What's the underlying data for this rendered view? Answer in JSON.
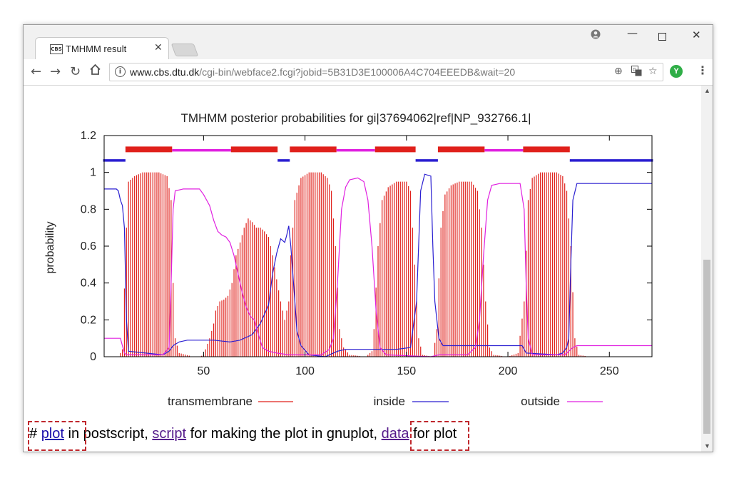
{
  "browser": {
    "tab_title": "TMHMM result",
    "favicon_text": "CBS",
    "url_host": "www.cbs.dtu.dk",
    "url_path": "/cgi-bin/webface2.fcgi?jobid=5B31D3E100006A4C704EEEDB&wait=20",
    "icons": [
      "profile-icon",
      "minimize-icon",
      "maximize-icon",
      "close-icon",
      "back-icon",
      "forward-icon",
      "reload-icon",
      "home-icon",
      "info-icon",
      "zoom-icon",
      "translate-icon",
      "star-icon",
      "extension-icon",
      "menu-icon"
    ],
    "extension_letter": "Y"
  },
  "chart_data": {
    "type": "line",
    "title": "TMHMM posterior probabilities for gi|37694062|ref|NP_932766.1|",
    "xlabel": "",
    "ylabel": "probability",
    "xlim": [
      1,
      271
    ],
    "ylim": [
      0,
      1.2
    ],
    "xticks": [
      "50",
      "100",
      "150",
      "200",
      "250"
    ],
    "yticks": [
      "0",
      "0.2",
      "0.4",
      "0.6",
      "0.8",
      "1",
      "1.2"
    ],
    "legend_position": "bottom",
    "colors": {
      "transmembrane": "#e0201b",
      "inside": "#2a1fd1",
      "outside": "#e020e0"
    },
    "topology": [
      {
        "type": "inside",
        "start": 1,
        "end": 11
      },
      {
        "type": "transmembrane",
        "start": 12,
        "end": 34
      },
      {
        "type": "outside",
        "start": 35,
        "end": 63
      },
      {
        "type": "transmembrane",
        "start": 64,
        "end": 86
      },
      {
        "type": "inside",
        "start": 87,
        "end": 92
      },
      {
        "type": "transmembrane",
        "start": 93,
        "end": 115
      },
      {
        "type": "outside",
        "start": 116,
        "end": 134
      },
      {
        "type": "transmembrane",
        "start": 135,
        "end": 154
      },
      {
        "type": "inside",
        "start": 155,
        "end": 165
      },
      {
        "type": "transmembrane",
        "start": 166,
        "end": 188
      },
      {
        "type": "outside",
        "start": 189,
        "end": 207
      },
      {
        "type": "transmembrane",
        "start": 208,
        "end": 230
      },
      {
        "type": "inside",
        "start": 231,
        "end": 271
      }
    ],
    "series": [
      {
        "name": "transmembrane",
        "style": "impulses",
        "points": [
          [
            1,
            0
          ],
          [
            8,
            0
          ],
          [
            10,
            0.04
          ],
          [
            12,
            0.7
          ],
          [
            13,
            0.95
          ],
          [
            16,
            0.98
          ],
          [
            20,
            1.0
          ],
          [
            28,
            1.0
          ],
          [
            32,
            0.98
          ],
          [
            34,
            0.85
          ],
          [
            35,
            0.4
          ],
          [
            36,
            0.1
          ],
          [
            38,
            0.02
          ],
          [
            45,
            0
          ],
          [
            48,
            0
          ],
          [
            50,
            0.01
          ],
          [
            53,
            0.1
          ],
          [
            55,
            0.18
          ],
          [
            56,
            0.25
          ],
          [
            58,
            0.3
          ],
          [
            60,
            0.31
          ],
          [
            62,
            0.33
          ],
          [
            64,
            0.4
          ],
          [
            66,
            0.55
          ],
          [
            68,
            0.62
          ],
          [
            70,
            0.7
          ],
          [
            72,
            0.75
          ],
          [
            74,
            0.73
          ],
          [
            76,
            0.7
          ],
          [
            78,
            0.7
          ],
          [
            80,
            0.68
          ],
          [
            82,
            0.65
          ],
          [
            84,
            0.55
          ],
          [
            86,
            0.42
          ],
          [
            88,
            0.3
          ],
          [
            90,
            0.2
          ],
          [
            92,
            0.3
          ],
          [
            93,
            0.55
          ],
          [
            95,
            0.85
          ],
          [
            98,
            0.97
          ],
          [
            102,
            1.0
          ],
          [
            108,
            1.0
          ],
          [
            111,
            0.97
          ],
          [
            113,
            0.9
          ],
          [
            115,
            0.6
          ],
          [
            117,
            0.15
          ],
          [
            119,
            0.05
          ],
          [
            122,
            0.01
          ],
          [
            130,
            0
          ],
          [
            133,
            0.03
          ],
          [
            134,
            0.15
          ],
          [
            136,
            0.6
          ],
          [
            138,
            0.85
          ],
          [
            141,
            0.92
          ],
          [
            145,
            0.95
          ],
          [
            150,
            0.95
          ],
          [
            152,
            0.9
          ],
          [
            154,
            0.5
          ],
          [
            156,
            0.1
          ],
          [
            158,
            0.01
          ],
          [
            163,
            0
          ],
          [
            165,
            0.15
          ],
          [
            167,
            0.7
          ],
          [
            169,
            0.88
          ],
          [
            172,
            0.93
          ],
          [
            176,
            0.95
          ],
          [
            182,
            0.95
          ],
          [
            185,
            0.9
          ],
          [
            187,
            0.7
          ],
          [
            189,
            0.3
          ],
          [
            191,
            0.05
          ],
          [
            193,
            0.01
          ],
          [
            200,
            0
          ],
          [
            205,
            0.02
          ],
          [
            208,
            0.3
          ],
          [
            210,
            0.85
          ],
          [
            212,
            0.97
          ],
          [
            216,
            1.0
          ],
          [
            224,
            1.0
          ],
          [
            227,
            0.98
          ],
          [
            229,
            0.9
          ],
          [
            231,
            0.6
          ],
          [
            233,
            0.1
          ],
          [
            235,
            0.01
          ],
          [
            240,
            0
          ],
          [
            271,
            0
          ]
        ]
      },
      {
        "name": "inside",
        "style": "line",
        "points": [
          [
            1,
            0.91
          ],
          [
            7,
            0.91
          ],
          [
            8,
            0.9
          ],
          [
            9,
            0.85
          ],
          [
            10,
            0.82
          ],
          [
            11,
            0.7
          ],
          [
            12,
            0.2
          ],
          [
            13,
            0.03
          ],
          [
            30,
            0.01
          ],
          [
            33,
            0.03
          ],
          [
            35,
            0.06
          ],
          [
            38,
            0.08
          ],
          [
            42,
            0.09
          ],
          [
            55,
            0.09
          ],
          [
            63,
            0.08
          ],
          [
            68,
            0.09
          ],
          [
            74,
            0.12
          ],
          [
            78,
            0.18
          ],
          [
            82,
            0.28
          ],
          [
            84,
            0.45
          ],
          [
            86,
            0.56
          ],
          [
            88,
            0.64
          ],
          [
            90,
            0.62
          ],
          [
            91,
            0.66
          ],
          [
            92,
            0.71
          ],
          [
            93,
            0.6
          ],
          [
            94,
            0.45
          ],
          [
            95,
            0.3
          ],
          [
            96,
            0.14
          ],
          [
            98,
            0.06
          ],
          [
            102,
            0.01
          ],
          [
            110,
            0
          ],
          [
            112,
            0.01
          ],
          [
            116,
            0.03
          ],
          [
            120,
            0.04
          ],
          [
            130,
            0.04
          ],
          [
            145,
            0.04
          ],
          [
            152,
            0.05
          ],
          [
            155,
            0.3
          ],
          [
            157,
            0.9
          ],
          [
            159,
            0.99
          ],
          [
            162,
            0.98
          ],
          [
            163,
            0.6
          ],
          [
            164,
            0.3
          ],
          [
            166,
            0.1
          ],
          [
            168,
            0.06
          ],
          [
            185,
            0.06
          ],
          [
            207,
            0.06
          ],
          [
            209,
            0.02
          ],
          [
            224,
            0.01
          ],
          [
            227,
            0.02
          ],
          [
            229,
            0.05
          ],
          [
            230,
            0.1
          ],
          [
            231,
            0.5
          ],
          [
            232,
            0.85
          ],
          [
            234,
            0.94
          ],
          [
            271,
            0.94
          ]
        ]
      },
      {
        "name": "outside",
        "style": "line",
        "points": [
          [
            1,
            0.1
          ],
          [
            9,
            0.1
          ],
          [
            10,
            0.06
          ],
          [
            11,
            0.02
          ],
          [
            12,
            0.01
          ],
          [
            30,
            0.01
          ],
          [
            33,
            0.05
          ],
          [
            34,
            0.4
          ],
          [
            35,
            0.8
          ],
          [
            36,
            0.9
          ],
          [
            40,
            0.91
          ],
          [
            48,
            0.91
          ],
          [
            50,
            0.88
          ],
          [
            53,
            0.82
          ],
          [
            55,
            0.74
          ],
          [
            57,
            0.68
          ],
          [
            59,
            0.66
          ],
          [
            61,
            0.65
          ],
          [
            63,
            0.62
          ],
          [
            65,
            0.55
          ],
          [
            67,
            0.45
          ],
          [
            69,
            0.35
          ],
          [
            71,
            0.27
          ],
          [
            73,
            0.22
          ],
          [
            75,
            0.2
          ],
          [
            77,
            0.12
          ],
          [
            79,
            0.05
          ],
          [
            82,
            0.03
          ],
          [
            86,
            0.02
          ],
          [
            92,
            0.01
          ],
          [
            108,
            0.01
          ],
          [
            112,
            0.04
          ],
          [
            114,
            0.1
          ],
          [
            116,
            0.4
          ],
          [
            118,
            0.8
          ],
          [
            120,
            0.92
          ],
          [
            122,
            0.96
          ],
          [
            126,
            0.97
          ],
          [
            129,
            0.95
          ],
          [
            131,
            0.85
          ],
          [
            133,
            0.6
          ],
          [
            135,
            0.25
          ],
          [
            137,
            0.05
          ],
          [
            140,
            0.01
          ],
          [
            162,
            0
          ],
          [
            166,
            0.01
          ],
          [
            180,
            0.01
          ],
          [
            184,
            0.05
          ],
          [
            186,
            0.2
          ],
          [
            188,
            0.55
          ],
          [
            190,
            0.85
          ],
          [
            192,
            0.93
          ],
          [
            196,
            0.94
          ],
          [
            206,
            0.94
          ],
          [
            208,
            0.8
          ],
          [
            209,
            0.4
          ],
          [
            210,
            0.1
          ],
          [
            212,
            0.01
          ],
          [
            228,
            0.01
          ],
          [
            230,
            0.03
          ],
          [
            232,
            0.05
          ],
          [
            234,
            0.06
          ],
          [
            271,
            0.06
          ]
        ]
      }
    ]
  },
  "bottom": {
    "hash": "# ",
    "plot_link": "plot",
    "text1": " in postscript, ",
    "script_link": "script",
    "text2": " for making the plot in gnuplot, ",
    "data_link": "data",
    "text3": " for plot"
  }
}
